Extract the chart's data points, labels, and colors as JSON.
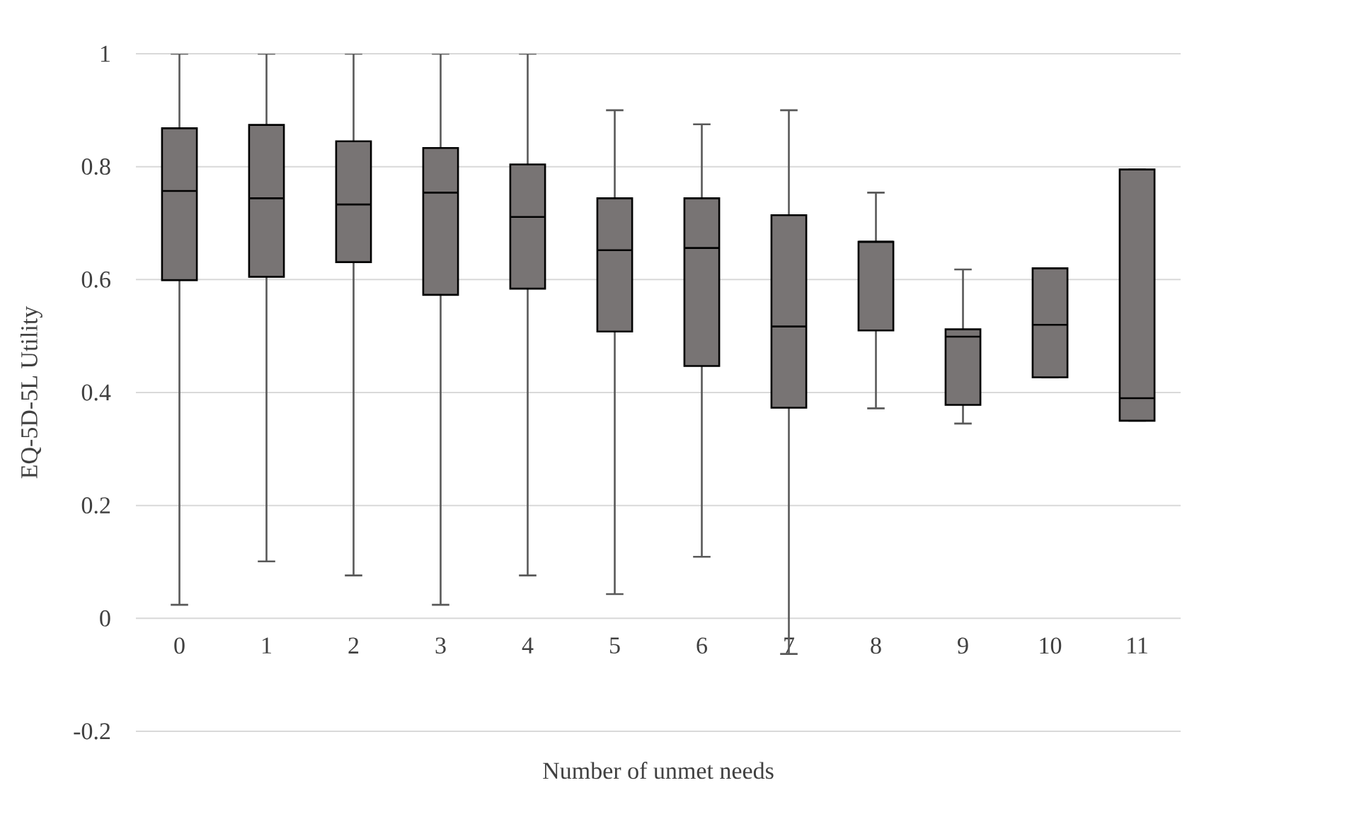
{
  "chart_data": {
    "type": "box",
    "xlabel": "Number of unmet needs",
    "ylabel": "EQ-5D-5L Utility",
    "categories": [
      "0",
      "1",
      "2",
      "3",
      "4",
      "5",
      "6",
      "7",
      "8",
      "9",
      "10",
      "11"
    ],
    "color": "#787474",
    "boxes": [
      {
        "low": 0.024,
        "q1": 0.599,
        "median": 0.757,
        "q3": 0.868,
        "high": 1
      },
      {
        "low": 0.101,
        "q1": 0.605,
        "median": 0.744,
        "q3": 0.874,
        "high": 1
      },
      {
        "low": 0.076,
        "q1": 0.631,
        "median": 0.733,
        "q3": 0.845,
        "high": 1
      },
      {
        "low": 0.024,
        "q1": 0.573,
        "median": 0.754,
        "q3": 0.833,
        "high": 1
      },
      {
        "low": 0.076,
        "q1": 0.584,
        "median": 0.711,
        "q3": 0.804,
        "high": 1
      },
      {
        "low": 0.043,
        "q1": 0.508,
        "median": 0.652,
        "q3": 0.744,
        "high": 0.9
      },
      {
        "low": 0.109,
        "q1": 0.447,
        "median": 0.656,
        "q3": 0.744,
        "high": 0.875
      },
      {
        "low": -0.063,
        "q1": 0.373,
        "median": 0.517,
        "q3": 0.714,
        "high": 0.9
      },
      {
        "low": 0.372,
        "q1": 0.51,
        "median": 0.667,
        "q3": 0.667,
        "high": 0.754
      },
      {
        "low": 0.345,
        "q1": 0.378,
        "median": 0.499,
        "q3": 0.512,
        "high": 0.618
      },
      {
        "low": 0.427,
        "q1": 0.427,
        "median": 0.52,
        "q3": 0.62,
        "high": 0.62
      },
      {
        "low": 0.35,
        "q1": 0.35,
        "median": 0.39,
        "q3": 0.795,
        "high": 0.795
      }
    ],
    "ylim": [
      -0.2,
      1
    ],
    "yticks": [
      -0.2,
      0,
      0.2,
      0.4,
      0.6,
      0.8,
      1
    ],
    "grid": "y"
  }
}
